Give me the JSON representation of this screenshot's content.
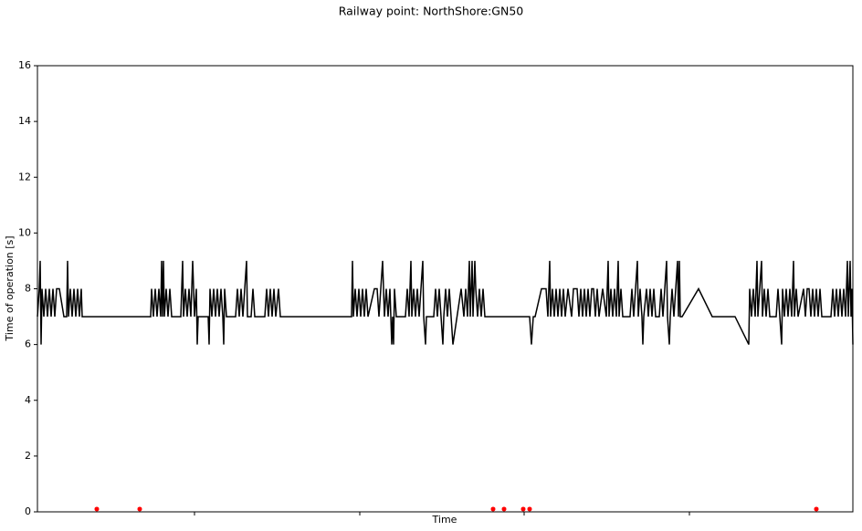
{
  "chart_data": {
    "type": "line",
    "title": "Railway point: NorthShore:GN50",
    "x_label": "Time",
    "y_label": "Time of operation [s]",
    "xlim": [
      0,
      893
    ],
    "xticks": [
      172,
      353,
      533,
      714
    ],
    "ylim": [
      0,
      16
    ],
    "yticks": [
      0,
      2,
      4,
      6,
      8,
      10,
      12,
      14,
      16
    ],
    "series": [
      {
        "color": "#000000",
        "style": "line",
        "x": [
          0,
          2,
          3,
          4,
          5,
          7,
          9,
          11,
          13,
          15,
          17,
          19,
          21,
          24,
          29,
          32,
          33,
          34,
          36,
          38,
          40,
          42,
          44,
          46,
          48,
          49,
          124,
          125,
          127,
          129,
          131,
          133,
          135,
          136,
          137,
          138,
          139,
          141,
          143,
          145,
          147,
          157,
          159,
          160,
          162,
          164,
          166,
          168,
          170,
          172,
          174,
          175,
          176,
          187,
          188,
          189,
          191,
          193,
          195,
          197,
          199,
          201,
          203,
          204,
          205,
          207,
          217,
          219,
          221,
          223,
          225,
          227,
          229,
          230,
          234,
          236,
          238,
          240,
          249,
          251,
          253,
          255,
          257,
          259,
          261,
          264,
          266,
          344,
          345,
          346,
          348,
          350,
          352,
          354,
          356,
          358,
          360,
          362,
          369,
          372,
          374,
          376,
          378,
          380,
          382,
          384,
          386,
          388,
          389,
          390,
          391,
          393,
          403,
          405,
          407,
          409,
          410,
          412,
          414,
          416,
          418,
          420,
          422,
          423,
          425,
          426,
          434,
          436,
          438,
          440,
          442,
          444,
          445,
          447,
          449,
          451,
          453,
          455,
          464,
          467,
          469,
          471,
          473,
          474,
          476,
          477,
          479,
          480,
          482,
          484,
          486,
          488,
          490,
          539,
          541,
          543,
          545,
          552,
          557,
          559,
          561,
          562,
          564,
          566,
          568,
          570,
          572,
          574,
          576,
          578,
          581,
          585,
          587,
          591,
          593,
          595,
          597,
          599,
          601,
          603,
          605,
          607,
          609,
          611,
          613,
          615,
          619,
          623,
          625,
          626,
          628,
          630,
          632,
          634,
          636,
          637,
          639,
          641,
          643,
          649,
          651,
          653,
          655,
          657,
          658,
          660,
          662,
          663,
          664,
          667,
          669,
          671,
          673,
          675,
          677,
          681,
          683,
          685,
          687,
          689,
          690,
          692,
          693,
          695,
          697,
          699,
          701,
          702,
          703,
          704,
          706,
          724,
          739,
          764,
          779,
          780,
          782,
          784,
          786,
          788,
          789,
          791,
          793,
          794,
          796,
          798,
          800,
          802,
          809,
          811,
          813,
          815,
          816,
          818,
          820,
          822,
          824,
          826,
          828,
          829,
          831,
          833,
          839,
          841,
          843,
          845,
          847,
          849,
          851,
          853,
          855,
          857,
          859,
          869,
          871,
          873,
          875,
          877,
          879,
          881,
          883,
          885,
          887,
          888,
          889,
          890,
          891,
          892,
          893
        ],
        "values": [
          7,
          8,
          9,
          6,
          8,
          7,
          8,
          7,
          8,
          7,
          8,
          7,
          8,
          8,
          7,
          7,
          9,
          7,
          8,
          7,
          8,
          7,
          8,
          7,
          8,
          7,
          7,
          8,
          7,
          8,
          7,
          8,
          7,
          9,
          7,
          9,
          7,
          8,
          7,
          8,
          7,
          7,
          9,
          7,
          8,
          7,
          8,
          7,
          9,
          7,
          8,
          6,
          7,
          7,
          6,
          8,
          7,
          8,
          7,
          8,
          7,
          8,
          7,
          6,
          8,
          7,
          7,
          8,
          7,
          8,
          7,
          8,
          9,
          7,
          7,
          8,
          7,
          7,
          7,
          8,
          7,
          8,
          7,
          8,
          7,
          8,
          7,
          7,
          9,
          7,
          8,
          7,
          8,
          7,
          8,
          7,
          8,
          7,
          8,
          8,
          7,
          8,
          9,
          7,
          8,
          7,
          8,
          6,
          7,
          6,
          8,
          7,
          7,
          8,
          7,
          9,
          7,
          8,
          7,
          8,
          7,
          8,
          9,
          7,
          6,
          7,
          7,
          8,
          7,
          8,
          7,
          6,
          7,
          8,
          7,
          8,
          7,
          6,
          8,
          7,
          8,
          7,
          9,
          7,
          9,
          7,
          9,
          8,
          7,
          8,
          7,
          8,
          7,
          7,
          6,
          7,
          7,
          8,
          8,
          7,
          9,
          7,
          8,
          7,
          8,
          7,
          8,
          7,
          8,
          7,
          8,
          7,
          8,
          8,
          7,
          8,
          7,
          8,
          7,
          8,
          7,
          8,
          8,
          7,
          8,
          7,
          8,
          7,
          9,
          7,
          8,
          7,
          8,
          7,
          9,
          7,
          8,
          7,
          7,
          7,
          8,
          7,
          8,
          9,
          7,
          8,
          7,
          6,
          7,
          8,
          7,
          8,
          7,
          8,
          7,
          7,
          8,
          7,
          8,
          9,
          7,
          6,
          7,
          8,
          7,
          8,
          9,
          7,
          9,
          7,
          7,
          8,
          7,
          7,
          6,
          8,
          7,
          8,
          7,
          9,
          7,
          8,
          9,
          7,
          8,
          7,
          8,
          7,
          7,
          8,
          7,
          6,
          8,
          7,
          8,
          7,
          8,
          7,
          9,
          7,
          8,
          7,
          8,
          7,
          8,
          8,
          7,
          8,
          7,
          8,
          7,
          8,
          7,
          7,
          8,
          7,
          8,
          7,
          8,
          7,
          8,
          7,
          9,
          7,
          8,
          9,
          7,
          8,
          6
        ]
      },
      {
        "color": "#ff0000",
        "style": "scatter",
        "x": [
          65,
          112,
          499,
          511,
          532,
          539,
          853
        ],
        "values": [
          0.1,
          0.1,
          0.1,
          0.1,
          0.1,
          0.1,
          0.1
        ]
      }
    ]
  }
}
